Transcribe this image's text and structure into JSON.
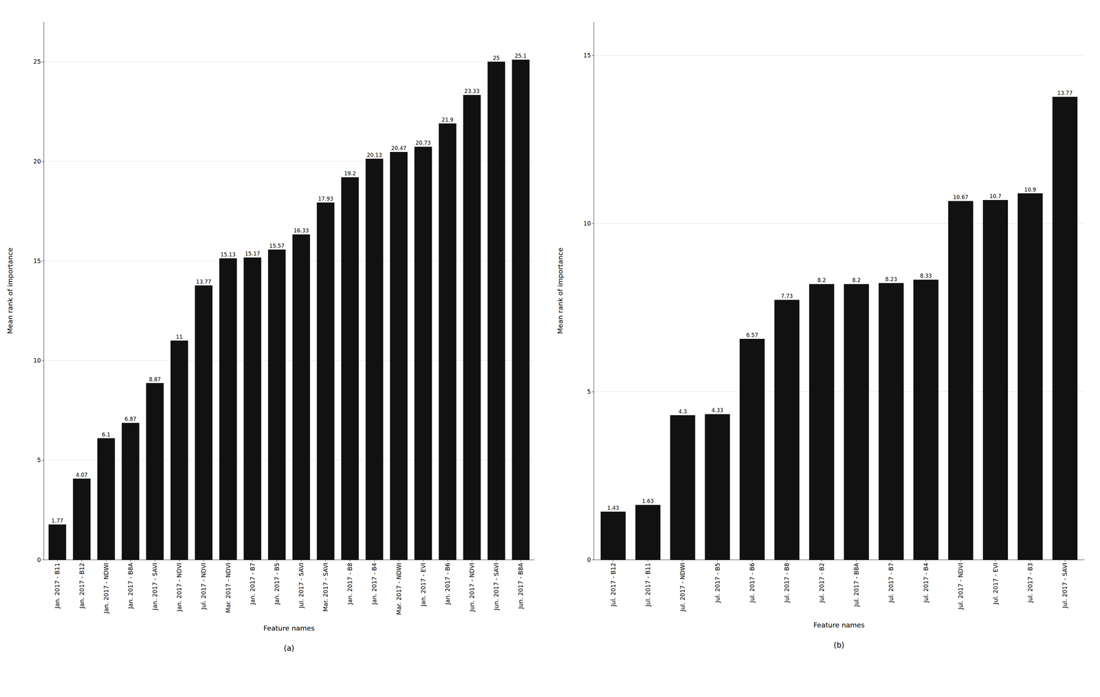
{
  "chart_data": [
    {
      "type": "bar",
      "categories": [
        "Jan. 2017 - B11",
        "Jan. 2017 - B12",
        "Jan. 2017 - NDWI",
        "Jan. 2017 - B8A",
        "Jan. 2017 - SAVI",
        "Jan. 2017 - NDVI",
        "Jul. 2017 - NDVI",
        "Mar. 2017 - NDVI",
        "Jan. 2017 - B7",
        "Jan. 2017 - B5",
        "Jul. 2017 - SAVI",
        "Mar. 2017 - SAVI",
        "Jan. 2017 - B8",
        "Jan. 2017 - B4",
        "Mar. 2017 - NDWI",
        "Jan. 2017 - EVI",
        "Jan. 2017 - B6",
        "Jun. 2017 - NDVI",
        "Jun. 2017 - SAVI",
        "Jun. 2017 - B8A"
      ],
      "values": [
        1.77,
        4.07,
        6.1,
        6.87,
        8.87,
        11,
        13.77,
        15.13,
        15.17,
        15.57,
        16.33,
        17.93,
        19.2,
        20.13,
        20.47,
        20.73,
        21.9,
        23.33,
        25,
        25.1
      ],
      "color": "#111111",
      "xlabel": "Feature names",
      "ylabel": "Mean rank of importance",
      "annotations": [
        "(a)"
      ],
      "ylim": [
        0,
        27
      ],
      "yticks": [
        0,
        5,
        10,
        15,
        20,
        25
      ],
      "grid": true,
      "data_labels": true
    },
    {
      "type": "bar",
      "categories": [
        "Jul. 2017 - B12",
        "Jul. 2017 - B11",
        "Jul. 2017 - NDWI",
        "Jul. 2017 - B5",
        "Jul. 2017 - B6",
        "Jul. 2017 - B8",
        "Jul. 2017 - B2",
        "Jul. 2017 - B8A",
        "Jul. 2017 - B7",
        "Jul. 2017 - B4",
        "Jul. 2017 - NDVI",
        "Jul. 2017 - EVI",
        "Jul. 2017 - B3",
        "Jul. 2017 - SAVI"
      ],
      "values": [
        1.43,
        1.63,
        4.3,
        4.33,
        6.57,
        7.73,
        8.2,
        8.2,
        8.23,
        8.33,
        10.67,
        10.7,
        10.9,
        13.77
      ],
      "color": "#111111",
      "xlabel": "Feature names",
      "ylabel": "Mean rank of importance",
      "annotations": [
        "(b)"
      ],
      "ylim": [
        0,
        16
      ],
      "yticks": [
        0,
        5,
        10,
        15
      ],
      "grid": true,
      "data_labels": true
    }
  ]
}
